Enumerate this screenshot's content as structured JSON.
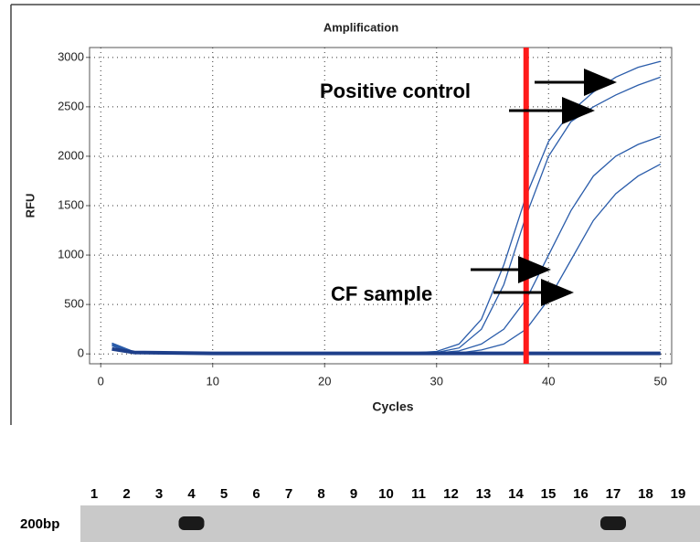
{
  "chart_data": {
    "type": "line",
    "title": "Amplification",
    "x_label": "Cycles",
    "y_label": "RFU",
    "xlim": [
      -1,
      51
    ],
    "xticks": [
      0,
      10,
      20,
      30,
      40,
      50
    ],
    "ylim": [
      -100,
      3100
    ],
    "yticks": [
      0,
      500,
      1000,
      1500,
      2000,
      2500,
      3000
    ],
    "grid": true,
    "x": [
      1,
      3,
      10,
      20,
      28,
      30,
      32,
      34,
      36,
      38,
      40,
      42,
      44,
      46,
      48,
      50
    ],
    "series": [
      {
        "color": "#2a5caa",
        "values": [
          110,
          20,
          10,
          10,
          12,
          25,
          100,
          350,
          900,
          1600,
          2150,
          2450,
          2650,
          2800,
          2900,
          2960
        ]
      },
      {
        "color": "#2a5caa",
        "values": [
          100,
          20,
          10,
          10,
          10,
          15,
          60,
          250,
          700,
          1400,
          2000,
          2350,
          2500,
          2620,
          2720,
          2800
        ]
      },
      {
        "color": "#2a5caa",
        "values": [
          90,
          15,
          8,
          8,
          8,
          10,
          30,
          100,
          250,
          550,
          1000,
          1450,
          1800,
          2000,
          2120,
          2200
        ]
      },
      {
        "color": "#2a5caa",
        "values": [
          80,
          15,
          8,
          8,
          5,
          5,
          10,
          40,
          100,
          250,
          550,
          950,
          1350,
          1620,
          1800,
          1920
        ]
      },
      {
        "color": "#1e3f8a",
        "values": [
          50,
          15,
          5,
          5,
          5,
          5,
          5,
          5,
          5,
          5,
          5,
          5,
          5,
          5,
          5,
          5
        ]
      }
    ],
    "threshold": {
      "x": 38,
      "color": "#ff1a1a"
    },
    "annotations": [
      "Positive control",
      "CF sample"
    ]
  },
  "gel": {
    "marker": "200bp",
    "lanes": [
      {
        "label": "1",
        "band": false
      },
      {
        "label": "2",
        "band": false
      },
      {
        "label": "3",
        "band": false
      },
      {
        "label": "4",
        "band": true
      },
      {
        "label": "5",
        "band": false
      },
      {
        "label": "6",
        "band": false
      },
      {
        "label": "7",
        "band": false
      },
      {
        "label": "8",
        "band": false
      },
      {
        "label": "9",
        "band": false
      },
      {
        "label": "10",
        "band": false
      },
      {
        "label": "11",
        "band": false
      },
      {
        "label": "12",
        "band": false
      },
      {
        "label": "13",
        "band": false
      },
      {
        "label": "14",
        "band": false
      },
      {
        "label": "15",
        "band": false
      },
      {
        "label": "16",
        "band": false
      },
      {
        "label": "17",
        "band": true
      },
      {
        "label": "18",
        "band": false
      },
      {
        "label": "19",
        "band": false
      }
    ]
  }
}
